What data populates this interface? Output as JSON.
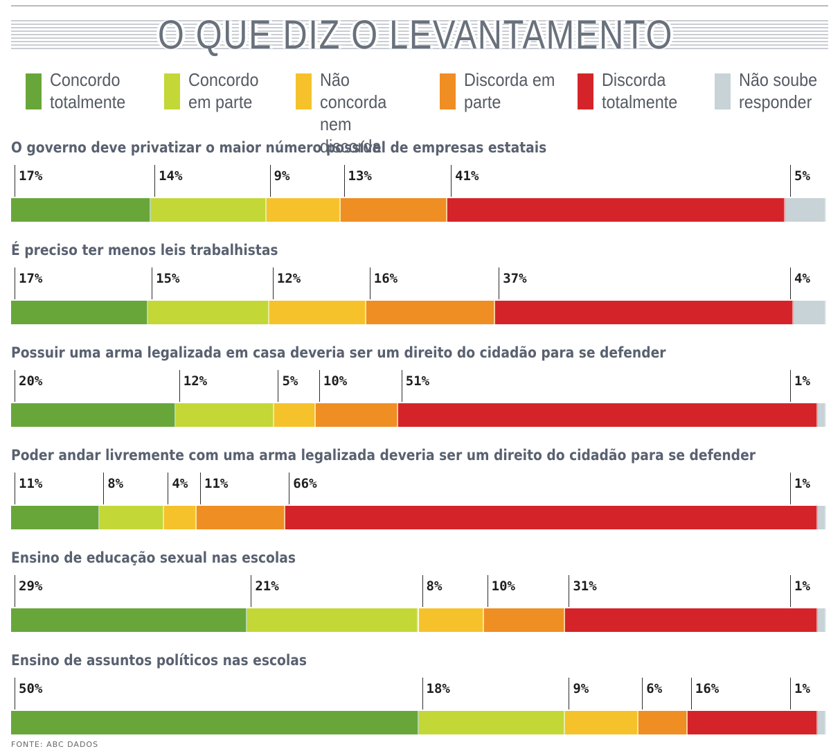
{
  "header": {
    "title": "O QUE DIZ O LEVANTAMENTO"
  },
  "legend": [
    {
      "label": "Concordo totalmente",
      "color": "#68a63a"
    },
    {
      "label": "Concordo em parte",
      "color": "#c3d737"
    },
    {
      "label": "Não concorda nem discorda",
      "color": "#f6c22b"
    },
    {
      "label": "Discorda em parte",
      "color": "#ef8e23"
    },
    {
      "label": "Discorda totalmente",
      "color": "#d42429"
    },
    {
      "label": "Não soube responder",
      "color": "#c7d3d6"
    }
  ],
  "chart_data": {
    "type": "bar",
    "stacked": true,
    "orientation": "horizontal",
    "title": "O QUE DIZ O LEVANTAMENTO",
    "series_names": [
      "Concordo totalmente",
      "Concordo em parte",
      "Não concorda nem discorda",
      "Discorda em parte",
      "Discorda totalmente",
      "Não soube responder"
    ],
    "questions": [
      {
        "label": "O governo deve privatizar o maior número possível de empresas estatais",
        "values": [
          17,
          14,
          9,
          13,
          41,
          5
        ]
      },
      {
        "label": "É preciso ter menos leis trabalhistas",
        "values": [
          17,
          15,
          12,
          16,
          37,
          4
        ]
      },
      {
        "label": "Possuir uma arma legalizada em casa deveria ser um direito do cidadão para se defender",
        "values": [
          20,
          12,
          5,
          10,
          51,
          1
        ]
      },
      {
        "label": "Poder andar livremente com uma arma legalizada deveria ser um direito do cidadão para se defender",
        "values": [
          11,
          8,
          4,
          11,
          66,
          1
        ]
      },
      {
        "label": "Ensino de educação sexual nas escolas",
        "values": [
          29,
          21,
          8,
          10,
          31,
          1
        ]
      },
      {
        "label": "Ensino de assuntos políticos nas escolas",
        "values": [
          50,
          18,
          9,
          6,
          16,
          1
        ]
      }
    ],
    "unit": "%"
  },
  "footer": {
    "source": "FONTE: ABC DADOS"
  }
}
